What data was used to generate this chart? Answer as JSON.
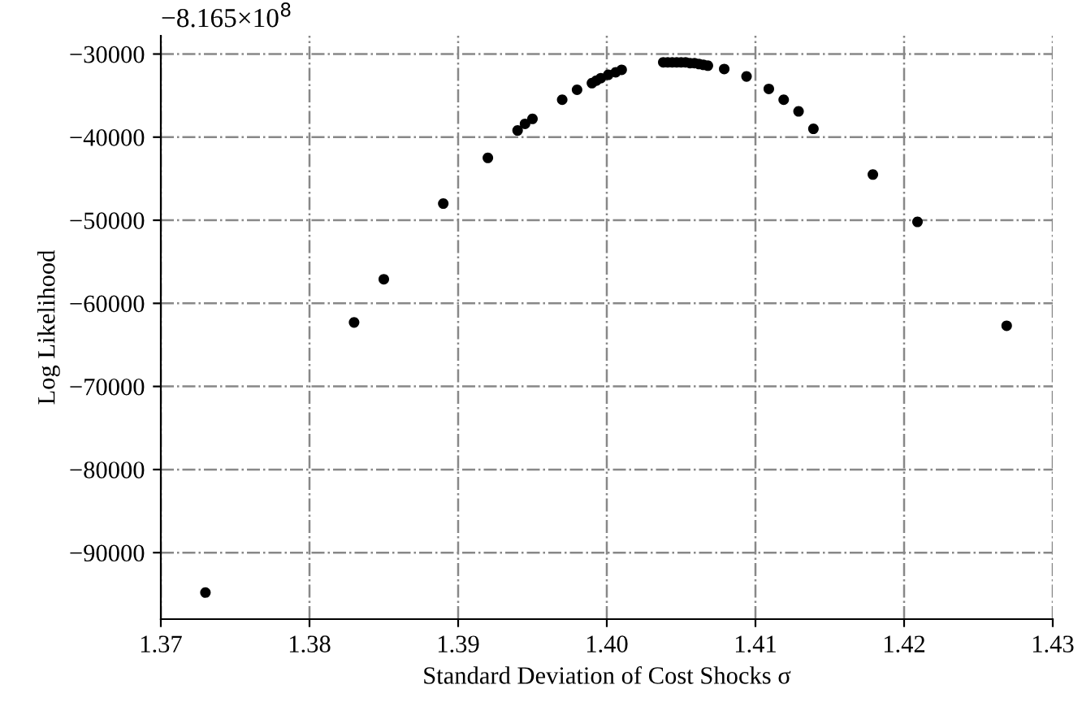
{
  "chart_data": {
    "type": "scatter",
    "xlabel": "Standard Deviation of Cost Shocks σ",
    "ylabel": "Log Likelihood",
    "annotations": [
      "−8.165×10$^{8}$"
    ],
    "x": [
      1.373,
      1.383,
      1.385,
      1.389,
      1.392,
      1.394,
      1.3945,
      1.395,
      1.397,
      1.398,
      1.399,
      1.3993,
      1.3996,
      1.4001,
      1.4006,
      1.401,
      1.4038,
      1.4041,
      1.4044,
      1.4047,
      1.405,
      1.4053,
      1.4056,
      1.4059,
      1.4062,
      1.4065,
      1.4068,
      1.4079,
      1.4094,
      1.4109,
      1.4119,
      1.4129,
      1.4139,
      1.4179,
      1.4209,
      1.4269
    ],
    "series": [
      {
        "color": "#000000",
        "values": [
          -94800,
          -62300,
          -57100,
          -48000,
          -42500,
          -39200,
          -38400,
          -37800,
          -35500,
          -34300,
          -33500,
          -33200,
          -32900,
          -32500,
          -32200,
          -31900,
          -31000,
          -31000,
          -31000,
          -31000,
          -31000,
          -31000,
          -31100,
          -31100,
          -31200,
          -31300,
          -31400,
          -31800,
          -32700,
          -34200,
          -35500,
          -36900,
          -39000,
          -44500,
          -50200,
          -62700
        ]
      }
    ],
    "xlim": [
      1.37,
      1.43
    ],
    "ylim": [
      -98000,
      -27800
    ],
    "xticks": [
      1.37,
      1.38,
      1.39,
      {
        "value": 1.4,
        "label": "1.40"
      },
      1.41,
      1.42,
      1.43
    ],
    "yticks": [
      {
        "value": -90000,
        "label": "−90000"
      },
      {
        "value": -80000,
        "label": "−80000"
      },
      {
        "value": -70000,
        "label": "−70000"
      },
      {
        "value": -60000,
        "label": "−60000"
      },
      {
        "value": -50000,
        "label": "−50000"
      },
      {
        "value": -40000,
        "label": "−40000"
      },
      {
        "value": -30000,
        "label": "−30000"
      }
    ],
    "grid": true,
    "marker": "circle",
    "legend": false
  }
}
